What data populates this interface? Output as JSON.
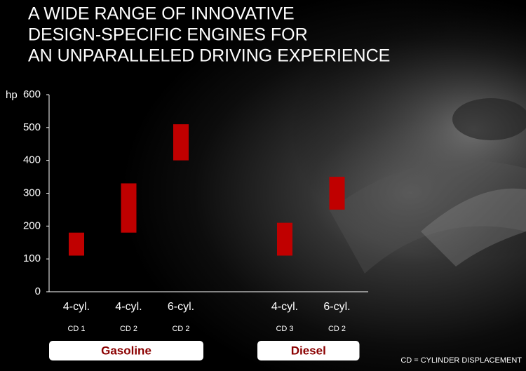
{
  "chart_data": {
    "type": "range",
    "title_lines": [
      "A WIDE RANGE OF INNOVATIVE",
      "DESIGN-SPECIFIC ENGINES FOR",
      "AN UNPARALLELED DRIVING EXPERIENCE"
    ],
    "y_label": "hp",
    "ylim": [
      0,
      600
    ],
    "yticks": [
      0,
      100,
      200,
      300,
      400,
      500,
      600
    ],
    "color": "#c00000",
    "groups": [
      {
        "name": "Gasoline",
        "categories": [
          {
            "label": "4-cyl.",
            "sublabel": "CD 1",
            "low": 110,
            "high": 180
          },
          {
            "label": "4-cyl.",
            "sublabel": "CD 2",
            "low": 180,
            "high": 330
          },
          {
            "label": "6-cyl.",
            "sublabel": "CD 2",
            "low": 400,
            "high": 510
          }
        ]
      },
      {
        "name": "Diesel",
        "categories": [
          {
            "label": "4-cyl.",
            "sublabel": "CD 3",
            "low": 110,
            "high": 210
          },
          {
            "label": "6-cyl.",
            "sublabel": "CD 2",
            "low": 250,
            "high": 350
          }
        ]
      }
    ],
    "footnote": "CD = CYLINDER DISPLACEMENT"
  }
}
